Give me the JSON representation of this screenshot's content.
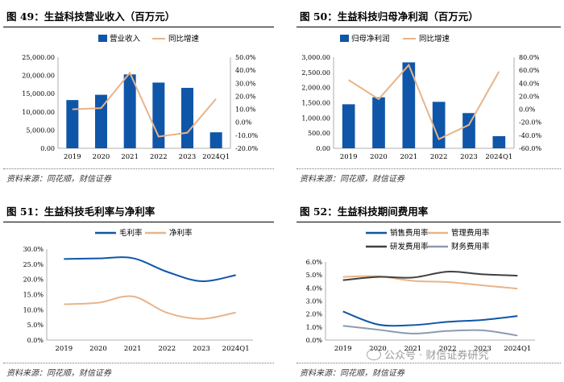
{
  "watermark": "公众号 · 财信证券研究",
  "chart_data": [
    {
      "id": "c49",
      "type": "bar",
      "title": "图 49：生益科技营业收入（百万元）",
      "source": "资料来源：同花顺，财信证券",
      "categories": [
        "2019",
        "2020",
        "2021",
        "2022",
        "2023",
        "2024Q1"
      ],
      "series": [
        {
          "name": "营业收入",
          "kind": "bar",
          "axis": "left",
          "color": "#0f56a8",
          "values": [
            13240,
            14690,
            20280,
            18040,
            16590,
            4390
          ]
        },
        {
          "name": "同比增速",
          "kind": "line",
          "axis": "right",
          "color": "#e8b48a",
          "values": [
            10.0,
            10.9,
            38.0,
            -11.0,
            -8.0,
            18.0
          ]
        }
      ],
      "left_ticks": [
        "0.00",
        "5,000.00",
        "10,000.00",
        "15,000.00",
        "20,000.00",
        "25,000.00"
      ],
      "right_ticks": [
        "-20.0%",
        "-10.0%",
        "0.0%",
        "10.0%",
        "20.0%",
        "30.0%",
        "40.0%",
        "50.0%"
      ],
      "ylim_left": [
        0,
        25000
      ],
      "ylim_right": [
        -20,
        50
      ],
      "legend_position": "top-center",
      "grid": false
    },
    {
      "id": "c50",
      "type": "bar",
      "title": "图 50：生益科技归母净利润（百万元）",
      "source": "资料来源：同花顺，财信证券",
      "categories": [
        "2019",
        "2020",
        "2021",
        "2022",
        "2023",
        "2024Q1"
      ],
      "series": [
        {
          "name": "归母净利润",
          "kind": "bar",
          "axis": "left",
          "color": "#0f56a8",
          "values": [
            1450,
            1680,
            2830,
            1530,
            1160,
            400
          ]
        },
        {
          "name": "同比增速",
          "kind": "line",
          "axis": "right",
          "color": "#e8b48a",
          "values": [
            45.0,
            15.5,
            68.0,
            -46.0,
            -24.0,
            58.0
          ]
        }
      ],
      "left_ticks": [
        "0.00",
        "500.00",
        "1,000.00",
        "1,500.00",
        "2,000.00",
        "2,500.00",
        "3,000.00"
      ],
      "right_ticks": [
        "-60.0%",
        "-40.0%",
        "-20.0%",
        "0.0%",
        "20.0%",
        "40.0%",
        "60.0%",
        "80.0%"
      ],
      "ylim_left": [
        0,
        3000
      ],
      "ylim_right": [
        -60,
        80
      ],
      "legend_position": "top-center",
      "grid": false
    },
    {
      "id": "c51",
      "type": "line",
      "title": "图 51：生益科技毛利率与净利率",
      "source": "资料来源：同花顺，财信证券",
      "categories": [
        "2019",
        "2020",
        "2021",
        "2022",
        "2023",
        "2024Q1"
      ],
      "series": [
        {
          "name": "毛利率",
          "color": "#0f56a8",
          "values": [
            26.7,
            26.9,
            27.0,
            22.5,
            19.4,
            21.4
          ]
        },
        {
          "name": "净利率",
          "color": "#e8b48a",
          "values": [
            11.8,
            12.3,
            14.4,
            9.0,
            7.0,
            9.1
          ]
        }
      ],
      "ticks": [
        "0.0%",
        "5.0%",
        "10.0%",
        "15.0%",
        "20.0%",
        "25.0%",
        "30.0%"
      ],
      "ylim": [
        0,
        30
      ],
      "legend_position": "top-center",
      "grid": false
    },
    {
      "id": "c52",
      "type": "line",
      "title": "图 52：生益科技期间费用率",
      "source": "资料来源：同花顺，财信证券",
      "categories": [
        "2019",
        "2020",
        "2021",
        "2022",
        "2023",
        "2024Q1"
      ],
      "series": [
        {
          "name": "销售费用率",
          "color": "#0f56a8",
          "values": [
            2.2,
            1.2,
            1.15,
            1.4,
            1.55,
            1.85
          ]
        },
        {
          "name": "管理费用率",
          "color": "#e8b48a",
          "values": [
            4.85,
            4.9,
            4.55,
            4.45,
            4.2,
            3.95
          ]
        },
        {
          "name": "研发费用率",
          "color": "#404040",
          "values": [
            4.6,
            4.85,
            4.8,
            5.25,
            5.05,
            4.95
          ]
        },
        {
          "name": "财务费用率",
          "color": "#8c9bb0",
          "values": [
            1.1,
            0.8,
            0.5,
            0.7,
            0.75,
            0.35
          ]
        }
      ],
      "ticks": [
        "0.0%",
        "1.0%",
        "2.0%",
        "3.0%",
        "4.0%",
        "5.0%",
        "6.0%"
      ],
      "ylim": [
        0,
        6
      ],
      "legend_position": "top-center",
      "grid": false
    }
  ]
}
